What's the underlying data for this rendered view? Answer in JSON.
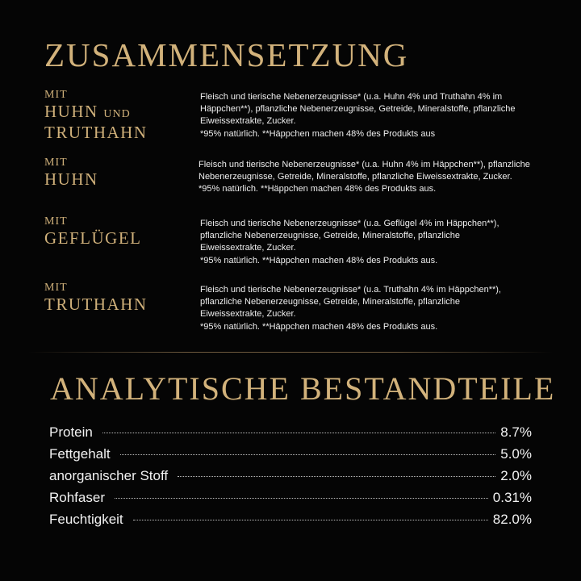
{
  "composition": {
    "title": "ZUSAMMENSETZUNG",
    "variants": [
      {
        "mit": "MIT",
        "name_a": "HUHN",
        "und": "UND",
        "name_b": "TRUTHAHN",
        "lines": [
          "Fleisch und tierische Nebenerzeugnisse* (u.a. Huhn 4% und Truthahn 4% im",
          "Häppchen**), pflanzliche Nebenerzeugnisse, Getreide, Mineralstoffe, pflanzliche",
          "Eiweissextrakte, Zucker.",
          "*95% natürlich. **Häppchen machen 48% des Produkts aus"
        ]
      },
      {
        "mit": "MIT",
        "name": "HUHN",
        "lines": [
          "Fleisch und tierische Nebenerzeugnisse* (u.a. Huhn 4% im Häppchen**), pflanzliche",
          "Nebenerzeugnisse, Getreide, Mineralstoffe, pflanzliche Eiweissextrakte, Zucker.",
          "*95% natürlich. **Häppchen machen 48% des Produkts aus."
        ]
      },
      {
        "mit": "MIT",
        "name": "GEFLÜGEL",
        "lines": [
          "Fleisch und tierische Nebenerzeugnisse* (u.a. Geflügel 4% im Häppchen**),",
          "pflanzliche Nebenerzeugnisse, Getreide, Mineralstoffe, pflanzliche",
          "Eiweissextrakte, Zucker.",
          "*95% natürlich. **Häppchen machen 48% des Produkts aus."
        ]
      },
      {
        "mit": "MIT",
        "name": "TRUTHAHN",
        "lines": [
          "Fleisch und tierische Nebenerzeugnisse* (u.a. Truthahn 4% im Häppchen**),",
          "pflanzliche Nebenerzeugnisse, Getreide, Mineralstoffe, pflanzliche",
          "Eiweissextrakte, Zucker.",
          "*95% natürlich. **Häppchen machen 48% des Produkts aus."
        ]
      }
    ]
  },
  "analysis": {
    "title": "ANALYTISCHE BESTANDTEILE",
    "rows": [
      {
        "label": "Protein",
        "value": "8.7%"
      },
      {
        "label": "Fettgehalt",
        "value": "5.0%"
      },
      {
        "label": "anorganischer Stoff",
        "value": "2.0%"
      },
      {
        "label": "Rohfaser",
        "value": "0.31%"
      },
      {
        "label": "Feuchtigkeit",
        "value": "82.0%"
      }
    ]
  },
  "colors": {
    "gold": "#d2b27b",
    "background": "#050505"
  }
}
